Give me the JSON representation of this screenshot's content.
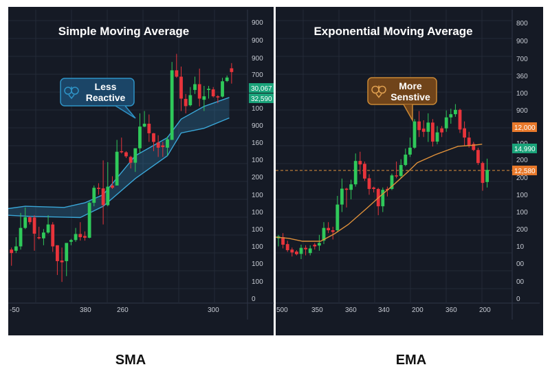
{
  "panels": [
    {
      "title": "Simple Moving Average",
      "bottom_label": "SMA",
      "callout": {
        "line1": "Less",
        "line2": "Reactive",
        "icon": "crown-ornament-icon"
      },
      "y_axis_labels": [
        "900",
        "900",
        "900",
        "700",
        "100",
        "900",
        "160",
        "100",
        "200",
        "100",
        "100",
        "100",
        "100",
        "100",
        "100",
        "0"
      ],
      "x_axis_labels": [
        "-50",
        "380",
        "260",
        "300"
      ],
      "price_badges": [
        {
          "text": "30,067",
          "color": "#1aa37a"
        },
        {
          "text": "32,590",
          "color": "#1aa37a"
        }
      ]
    },
    {
      "title": "Exponential Moving Average",
      "bottom_label": "EMA",
      "callout": {
        "line1": "More",
        "line2": "Senstive",
        "icon": "crown-ornament-icon"
      },
      "y_axis_labels": [
        "800",
        "900",
        "700",
        "360",
        "100",
        "900",
        "100",
        "200",
        "200",
        "100",
        "100",
        "200",
        "10",
        "00",
        "00",
        "0"
      ],
      "x_axis_labels": [
        "500",
        "350",
        "360",
        "340",
        "200",
        "360",
        "200"
      ],
      "price_badges": [
        {
          "text": "12,000",
          "color": "#e8792b"
        },
        {
          "text": "14,990",
          "color": "#1aa37a"
        },
        {
          "text": "12,580",
          "color": "#e8792b"
        }
      ]
    }
  ],
  "colors": {
    "up": "#2fc95a",
    "down": "#e8343b",
    "sma_band": "#3aa7d8",
    "ema_line": "#e0913a",
    "dashed_level": "#e0913a",
    "background": "#151a25"
  },
  "chart_data": [
    {
      "type": "candlestick",
      "title": "Simple Moving Average",
      "ylim": [
        0,
        100
      ],
      "grid": true,
      "ohlc": [
        [
          18.3,
          19,
          12.7,
          17.1
        ],
        [
          17.9,
          22.6,
          17.1,
          19.4
        ],
        [
          19.4,
          31,
          18.3,
          25.8
        ],
        [
          25.8,
          32.9,
          25.4,
          29.5
        ],
        [
          29.5,
          29.8,
          27,
          27.8
        ],
        [
          29.4,
          30.2,
          17.9,
          23.8
        ],
        [
          22.6,
          26.2,
          21.8,
          22.2
        ],
        [
          22.2,
          25.4,
          19.8,
          24.2
        ],
        [
          24.2,
          30.2,
          23.8,
          27
        ],
        [
          27,
          27.8,
          17.5,
          19.4
        ],
        [
          19.8,
          19.8,
          9.5,
          14.3
        ],
        [
          14.5,
          19,
          7.1,
          13.9
        ],
        [
          14.3,
          20.6,
          9.1,
          20.6
        ],
        [
          21,
          22,
          19.8,
          21.6
        ],
        [
          21.6,
          25.8,
          21,
          23.7
        ],
        [
          23.7,
          27.8,
          21.4,
          22.6
        ],
        [
          23,
          24.6,
          21.4,
          22.4
        ],
        [
          22.4,
          34.9,
          22.2,
          34.5
        ],
        [
          34.5,
          40.5,
          33.3,
          39.7
        ],
        [
          39.7,
          41.3,
          37.3,
          39.3
        ],
        [
          39.5,
          49.2,
          27,
          33.7
        ],
        [
          33.7,
          48.6,
          33.3,
          40.1
        ],
        [
          40.5,
          43.7,
          39.3,
          39.7
        ],
        [
          40.5,
          56.3,
          40.5,
          52.2
        ],
        [
          52.4,
          57.1,
          51.6,
          52
        ],
        [
          52,
          52.4,
          50,
          50.6
        ],
        [
          50.4,
          50.8,
          46.4,
          48.4
        ],
        [
          48.4,
          53.4,
          45.2,
          53.4
        ],
        [
          53.4,
          65.5,
          51.6,
          60.9
        ],
        [
          60.9,
          66.3,
          60.7,
          61.9
        ],
        [
          61.9,
          65.1,
          55.6,
          58.6
        ],
        [
          58.6,
          58.7,
          52.4,
          55.6
        ],
        [
          55.4,
          57.9,
          50.4,
          53.6
        ],
        [
          54.4,
          55.6,
          50.4,
          53.8
        ],
        [
          53.6,
          57.5,
          50.8,
          56.5
        ],
        [
          56.3,
          83.3,
          56.3,
          80.4
        ],
        [
          80.4,
          86.1,
          77.8,
          78.2
        ],
        [
          78.2,
          81.7,
          66.3,
          70.6
        ],
        [
          70.5,
          72.2,
          65.5,
          68
        ],
        [
          68.3,
          74.6,
          67.9,
          71.8
        ],
        [
          73.6,
          78.2,
          72.2,
          75.6
        ],
        [
          75.6,
          81,
          67.9,
          70.6
        ],
        [
          70.2,
          75,
          66.3,
          71.4
        ],
        [
          73.6,
          75,
          70.6,
          74
        ],
        [
          73.8,
          74.6,
          71,
          71.4
        ],
        [
          71.4,
          71.8,
          69,
          71
        ],
        [
          71.3,
          77.8,
          71,
          76.6
        ],
        [
          76.7,
          78.6,
          76.3,
          77.9
        ],
        [
          81.1,
          82.9,
          75.8,
          79.8
        ]
      ],
      "sma_band_upper": [
        [
          -0.5,
          32.5
        ],
        [
          3,
          33.3
        ],
        [
          11.5,
          32.9
        ],
        [
          16,
          34.5
        ],
        [
          20,
          37.3
        ],
        [
          27,
          50.8
        ],
        [
          34,
          57.1
        ],
        [
          37,
          63.5
        ],
        [
          42,
          67.9
        ],
        [
          47.5,
          71
        ]
      ],
      "sma_band_lower": [
        [
          -0.5,
          30.2
        ],
        [
          4,
          29.8
        ],
        [
          12,
          29.5
        ],
        [
          15,
          29.4
        ],
        [
          20,
          33.3
        ],
        [
          27,
          42.9
        ],
        [
          34,
          50.8
        ],
        [
          37,
          58.7
        ],
        [
          42,
          60.3
        ],
        [
          47.5,
          63.9
        ]
      ]
    },
    {
      "type": "candlestick",
      "title": "Exponential Moving Average",
      "ylim": [
        0,
        100
      ],
      "grid": true,
      "ohlc": [
        [
          22.2,
          23.4,
          19.4,
          22.9
        ],
        [
          22.6,
          24,
          18.7,
          20
        ],
        [
          20.2,
          21.4,
          17.5,
          18.1
        ],
        [
          18.3,
          19,
          15.9,
          17.3
        ],
        [
          17.6,
          18.1,
          16.3,
          16.7
        ],
        [
          16.8,
          20,
          15,
          18.9
        ],
        [
          18.9,
          19.8,
          16.3,
          18.4
        ],
        [
          17.1,
          19.8,
          16.3,
          18.7
        ],
        [
          20,
          20.6,
          18.3,
          19.4
        ],
        [
          19.7,
          23.4,
          17.9,
          20.6
        ],
        [
          21.4,
          27.8,
          20.2,
          25.8
        ],
        [
          25.8,
          27.8,
          24,
          25
        ],
        [
          25,
          26.2,
          21.8,
          24.4
        ],
        [
          25,
          36.9,
          24.6,
          33.9
        ],
        [
          33.9,
          42.9,
          31.3,
          39.4
        ],
        [
          39.4,
          39.7,
          32.9,
          39
        ],
        [
          39,
          42.5,
          35.7,
          40.9
        ],
        [
          40.9,
          51.6,
          40.1,
          49
        ],
        [
          49,
          52.2,
          44.4,
          47.8
        ],
        [
          48,
          48.8,
          42.1,
          42.9
        ],
        [
          43,
          44.4,
          37.3,
          39.3
        ],
        [
          39.8,
          40.1,
          38.1,
          39.3
        ],
        [
          39.3,
          39.7,
          30.2,
          33.3
        ],
        [
          33.3,
          39.8,
          31.3,
          39
        ],
        [
          39.3,
          40.1,
          36.7,
          38.9
        ],
        [
          39.3,
          44.6,
          38.9,
          44
        ],
        [
          44,
          48.8,
          43,
          43.7
        ],
        [
          43.8,
          49.6,
          42.9,
          47.6
        ],
        [
          47.6,
          53.3,
          47.2,
          51.2
        ],
        [
          51.2,
          57.1,
          50.4,
          53.6
        ],
        [
          53.6,
          63.5,
          53.2,
          62.7
        ],
        [
          62.7,
          66.3,
          57.3,
          59.7
        ],
        [
          60.2,
          63.1,
          57.3,
          59.1
        ],
        [
          59.1,
          65.5,
          55.6,
          62.3
        ],
        [
          62.3,
          63.5,
          54,
          55.7
        ],
        [
          55.7,
          61.1,
          54.8,
          58.9
        ],
        [
          60.3,
          61.1,
          57.3,
          58.9
        ],
        [
          60.3,
          66.5,
          59.1,
          64.1
        ],
        [
          64.1,
          67.1,
          61.9,
          65.2
        ],
        [
          65.2,
          68.7,
          64.3,
          66.7
        ],
        [
          66.7,
          67.1,
          58.7,
          59.9
        ],
        [
          60.3,
          62.7,
          54.4,
          57.1
        ],
        [
          57.1,
          59.1,
          53.6,
          54.4
        ],
        [
          54.9,
          55.6,
          52.4,
          52.8
        ],
        [
          52.8,
          53.6,
          47.6,
          48.3
        ],
        [
          48.3,
          48.8,
          38.7,
          41.4
        ],
        [
          41.7,
          49.8,
          39.8,
          45.9
        ]
      ],
      "ema_line": [
        [
          -0.76,
          22.6
        ],
        [
          2.3,
          22.2
        ],
        [
          5.3,
          21.2
        ],
        [
          9.3,
          21.2
        ],
        [
          12.4,
          23.8
        ],
        [
          15.4,
          27
        ],
        [
          19.4,
          32.5
        ],
        [
          22.5,
          36.9
        ],
        [
          25.5,
          40.9
        ],
        [
          28.5,
          45.2
        ],
        [
          30.6,
          48.4
        ],
        [
          34.6,
          51.2
        ],
        [
          39.6,
          54.1
        ],
        [
          42.7,
          54.4
        ],
        [
          44.9,
          54.8
        ]
      ],
      "dashed_level": 45.7
    }
  ]
}
